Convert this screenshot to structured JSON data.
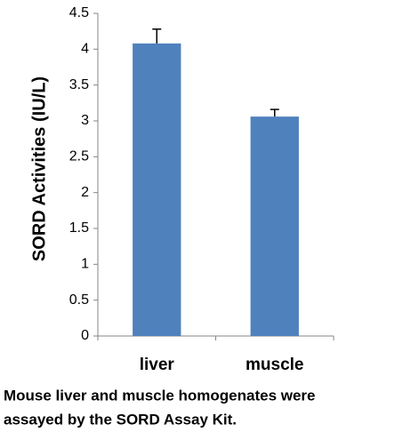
{
  "chart_data": {
    "type": "bar",
    "ylabel": "SORD Activities (IU/L)",
    "categories": [
      "liver",
      "muscle"
    ],
    "values": [
      4.08,
      3.06
    ],
    "errors": [
      0.2,
      0.1
    ],
    "color": "#4f81bd",
    "ylim": [
      0,
      4.5
    ],
    "yticks": [
      0,
      0.5,
      1,
      1.5,
      2,
      2.5,
      3,
      3.5,
      4,
      4.5
    ],
    "grid": false
  },
  "caption": [
    "Mouse liver and muscle homogenates were",
    "assayed by the SORD Assay Kit."
  ]
}
